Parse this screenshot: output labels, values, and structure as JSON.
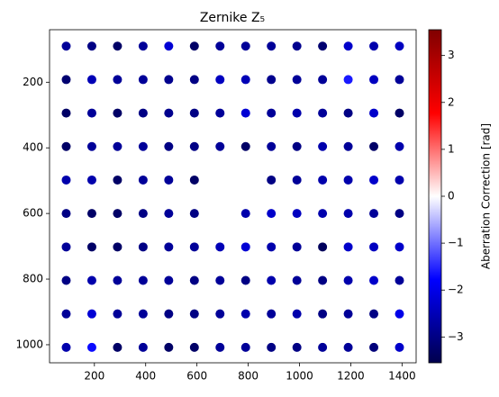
{
  "chart_data": {
    "type": "scatter",
    "title": "Zernike Z₅",
    "colorbar_label": "Aberration Correction [rad]",
    "colormap": "seismic",
    "clim": [
      -3.55,
      3.55
    ],
    "cticks": [
      {
        "value": -3,
        "label": "−3"
      },
      {
        "value": -2,
        "label": "−2"
      },
      {
        "value": -1,
        "label": "−1"
      },
      0,
      1,
      2,
      3
    ],
    "xlim": [
      25,
      1455
    ],
    "ylim": [
      1055,
      40
    ],
    "y_inverted": true,
    "xticks": [
      200,
      400,
      600,
      800,
      1000,
      1200,
      1400
    ],
    "yticks": [
      200,
      400,
      600,
      800,
      1000
    ],
    "x": [
      90,
      190,
      290,
      390,
      490,
      590,
      690,
      790,
      890,
      990,
      1090,
      1190,
      1290,
      1390,
      90,
      190,
      290,
      390,
      490,
      590,
      690,
      790,
      890,
      990,
      1090,
      1190,
      1290,
      1390,
      90,
      190,
      290,
      390,
      490,
      590,
      690,
      790,
      890,
      990,
      1090,
      1190,
      1290,
      1390,
      90,
      190,
      290,
      390,
      490,
      590,
      690,
      790,
      890,
      990,
      1090,
      1190,
      1290,
      1390,
      90,
      190,
      290,
      390,
      490,
      590,
      890,
      990,
      1090,
      1190,
      1290,
      1390,
      90,
      190,
      290,
      390,
      490,
      590,
      790,
      890,
      990,
      1090,
      1190,
      1290,
      1390,
      90,
      190,
      290,
      390,
      490,
      590,
      690,
      790,
      890,
      990,
      1090,
      1190,
      1290,
      1390,
      90,
      190,
      290,
      390,
      490,
      590,
      690,
      790,
      890,
      990,
      1090,
      1190,
      1290,
      1390,
      90,
      190,
      290,
      390,
      490,
      590,
      690,
      790,
      890,
      990,
      1090,
      1190,
      1290,
      1390,
      90,
      190,
      290,
      390,
      490,
      590,
      690,
      790,
      890,
      990,
      1090,
      1190,
      1290,
      1390
    ],
    "y": [
      90,
      90,
      90,
      90,
      90,
      90,
      90,
      90,
      90,
      90,
      90,
      90,
      90,
      90,
      192,
      192,
      192,
      192,
      192,
      192,
      192,
      192,
      192,
      192,
      192,
      192,
      192,
      192,
      294,
      294,
      294,
      294,
      294,
      294,
      294,
      294,
      294,
      294,
      294,
      294,
      294,
      294,
      396,
      396,
      396,
      396,
      396,
      396,
      396,
      396,
      396,
      396,
      396,
      396,
      396,
      396,
      498,
      498,
      498,
      498,
      498,
      498,
      498,
      498,
      498,
      498,
      498,
      498,
      600,
      600,
      600,
      600,
      600,
      600,
      600,
      600,
      600,
      600,
      600,
      600,
      600,
      702,
      702,
      702,
      702,
      702,
      702,
      702,
      702,
      702,
      702,
      702,
      702,
      702,
      702,
      804,
      804,
      804,
      804,
      804,
      804,
      804,
      804,
      804,
      804,
      804,
      804,
      804,
      804,
      906,
      906,
      906,
      906,
      906,
      906,
      906,
      906,
      906,
      906,
      906,
      906,
      906,
      906,
      1008,
      1008,
      1008,
      1008,
      1008,
      1008,
      1008,
      1008,
      1008,
      1008,
      1008,
      1008,
      1008,
      1008
    ],
    "c": [
      -2.8,
      -3.0,
      -3.3,
      -2.8,
      -2.2,
      -3.3,
      -2.8,
      -2.8,
      -2.8,
      -2.9,
      -3.2,
      -2.3,
      -2.6,
      -2.4,
      -3.2,
      -2.5,
      -2.8,
      -2.8,
      -2.9,
      -3.0,
      -2.4,
      -2.5,
      -2.9,
      -2.8,
      -2.8,
      -1.6,
      -2.4,
      -2.8,
      -3.3,
      -2.8,
      -3.3,
      -3.0,
      -2.9,
      -3.0,
      -2.8,
      -2.2,
      -2.8,
      -2.6,
      -2.8,
      -3.0,
      -2.3,
      -3.3,
      -3.3,
      -2.8,
      -2.8,
      -2.8,
      -3.0,
      -3.0,
      -2.8,
      -3.3,
      -2.8,
      -3.0,
      -2.6,
      -2.8,
      -3.3,
      -2.6,
      -2.6,
      -2.6,
      -3.3,
      -2.8,
      -2.8,
      -3.3,
      -3.0,
      -2.8,
      -2.6,
      -2.6,
      -2.3,
      -2.6,
      -3.0,
      -3.3,
      -3.3,
      -3.0,
      -2.8,
      -3.0,
      -2.6,
      -2.3,
      -2.4,
      -2.6,
      -2.6,
      -2.8,
      -3.0,
      -2.8,
      -3.3,
      -3.3,
      -3.0,
      -2.8,
      -2.8,
      -2.5,
      -2.2,
      -2.6,
      -2.8,
      -3.4,
      -2.3,
      -2.4,
      -2.3,
      -3.0,
      -2.6,
      -2.8,
      -2.8,
      -2.8,
      -3.0,
      -2.8,
      -3.0,
      -2.6,
      -2.8,
      -3.0,
      -2.6,
      -2.3,
      -2.8,
      -2.8,
      -2.2,
      -2.8,
      -2.8,
      -3.0,
      -3.0,
      -2.8,
      -2.6,
      -2.8,
      -2.6,
      -3.0,
      -2.8,
      -3.0,
      -2.0,
      -2.6,
      -1.7,
      -3.3,
      -2.8,
      -3.3,
      -3.3,
      -2.8,
      -2.8,
      -3.0,
      -3.0,
      -2.8,
      -2.8,
      -3.1,
      -2.3
    ]
  }
}
